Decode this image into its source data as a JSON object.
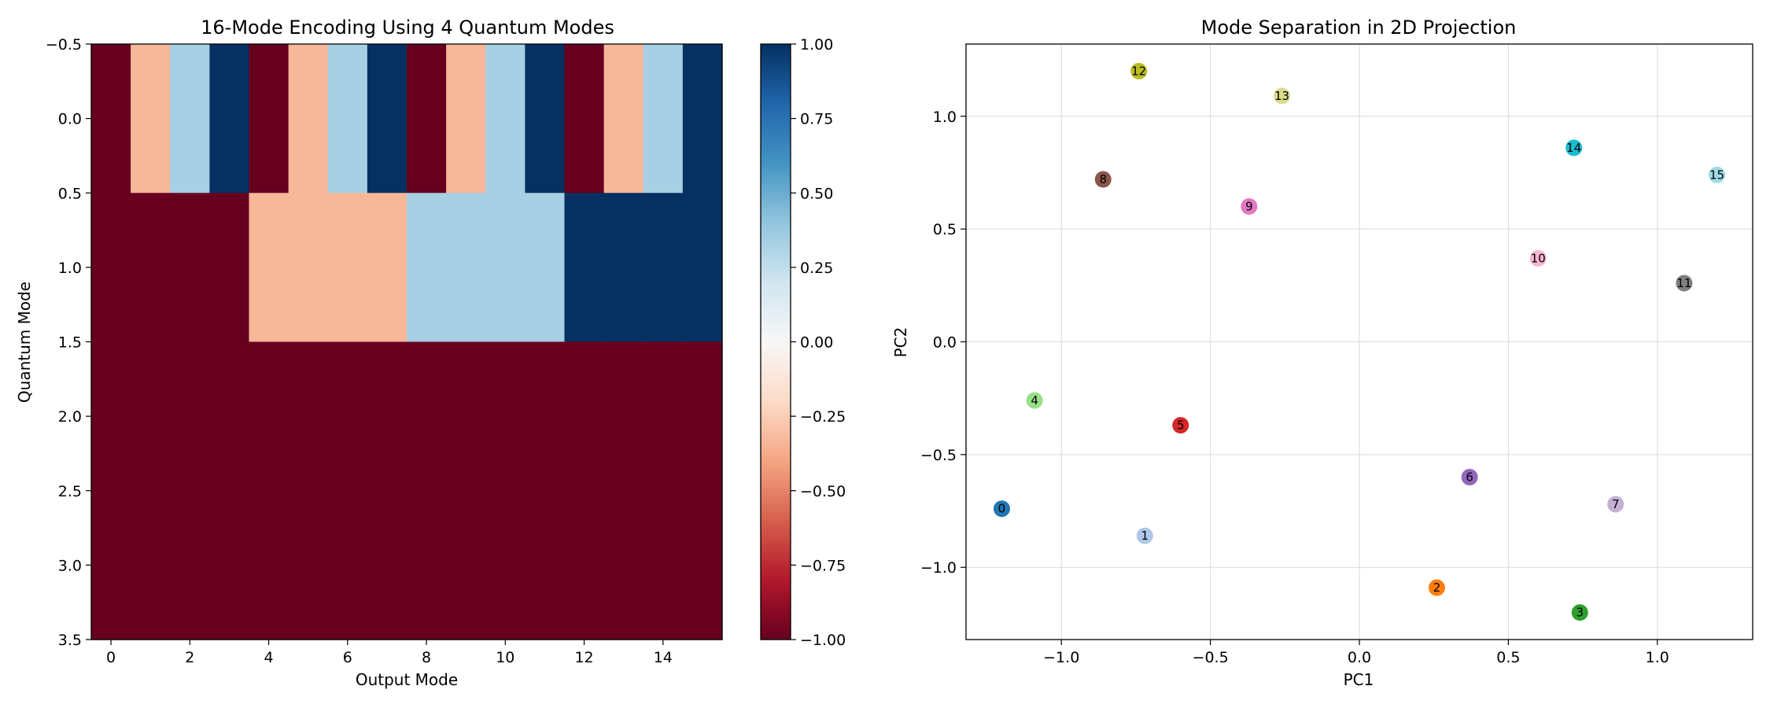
{
  "chart_data": [
    {
      "type": "heatmap",
      "title": "16-Mode Encoding Using 4 Quantum Modes",
      "xlabel": "Output Mode",
      "ylabel": "Quantum Mode",
      "x_categories": [
        0,
        1,
        2,
        3,
        4,
        5,
        6,
        7,
        8,
        9,
        10,
        11,
        12,
        13,
        14,
        15
      ],
      "y_categories": [
        0,
        1,
        2,
        3
      ],
      "xlim": [
        -0.5,
        15.5
      ],
      "ylim": [
        -0.5,
        3.5
      ],
      "y_inverted": true,
      "x_ticks": [
        "0",
        "2",
        "4",
        "6",
        "8",
        "10",
        "12",
        "14"
      ],
      "y_ticks": [
        "−0.5",
        "0.0",
        "0.5",
        "1.0",
        "1.5",
        "2.0",
        "2.5",
        "3.0",
        "3.5"
      ],
      "colormap": "RdBu",
      "vmin": -1.0,
      "vmax": 1.0,
      "values": [
        [
          -1,
          -0.333,
          0.333,
          1,
          -1,
          -0.333,
          0.333,
          1,
          -1,
          -0.333,
          0.333,
          1,
          -1,
          -0.333,
          0.333,
          1
        ],
        [
          -1,
          -1,
          -1,
          -1,
          -0.333,
          -0.333,
          -0.333,
          -0.333,
          0.333,
          0.333,
          0.333,
          0.333,
          1,
          1,
          1,
          1
        ],
        [
          -1,
          -1,
          -1,
          -1,
          -1,
          -1,
          -1,
          -1,
          -1,
          -1,
          -1,
          -1,
          -1,
          -1,
          -1,
          -1
        ],
        [
          -1,
          -1,
          -1,
          -1,
          -1,
          -1,
          -1,
          -1,
          -1,
          -1,
          -1,
          -1,
          -1,
          -1,
          -1,
          -1
        ]
      ],
      "colorbar_ticks": [
        "1.00",
        "0.75",
        "0.50",
        "0.25",
        "0.00",
        "−0.25",
        "−0.50",
        "−0.75",
        "−1.00"
      ]
    },
    {
      "type": "scatter",
      "title": "Mode Separation in 2D Projection",
      "xlabel": "PC1",
      "ylabel": "PC2",
      "xlim": [
        -1.32,
        1.32
      ],
      "ylim": [
        -1.32,
        1.32
      ],
      "x_ticks": [
        "−1.0",
        "−0.5",
        "0.0",
        "0.5",
        "1.0"
      ],
      "y_ticks": [
        "1.0",
        "0.5",
        "0.0",
        "−0.5",
        "−1.0"
      ],
      "grid": true,
      "points": [
        {
          "label": "0",
          "x": -1.2,
          "y": -0.74,
          "color": "#1f77b4"
        },
        {
          "label": "1",
          "x": -0.72,
          "y": -0.86,
          "color": "#aec7e8"
        },
        {
          "label": "2",
          "x": 0.26,
          "y": -1.09,
          "color": "#ff7f0e"
        },
        {
          "label": "3",
          "x": 0.74,
          "y": -1.2,
          "color": "#2ca02c"
        },
        {
          "label": "4",
          "x": -1.09,
          "y": -0.26,
          "color": "#98df8a"
        },
        {
          "label": "5",
          "x": -0.6,
          "y": -0.37,
          "color": "#d62728"
        },
        {
          "label": "6",
          "x": 0.37,
          "y": -0.6,
          "color": "#9467bd"
        },
        {
          "label": "7",
          "x": 0.86,
          "y": -0.72,
          "color": "#c5b0d5"
        },
        {
          "label": "8",
          "x": -0.86,
          "y": 0.72,
          "color": "#8c564b"
        },
        {
          "label": "9",
          "x": -0.37,
          "y": 0.6,
          "color": "#e377c2"
        },
        {
          "label": "10",
          "x": 0.6,
          "y": 0.37,
          "color": "#f7b6d2"
        },
        {
          "label": "11",
          "x": 1.09,
          "y": 0.26,
          "color": "#7f7f7f"
        },
        {
          "label": "12",
          "x": -0.74,
          "y": 1.2,
          "color": "#bcbd22"
        },
        {
          "label": "13",
          "x": -0.26,
          "y": 1.09,
          "color": "#dbdb8d"
        },
        {
          "label": "14",
          "x": 0.72,
          "y": 0.86,
          "color": "#17becf"
        },
        {
          "label": "15",
          "x": 1.2,
          "y": 0.74,
          "color": "#9edae5"
        }
      ]
    }
  ]
}
